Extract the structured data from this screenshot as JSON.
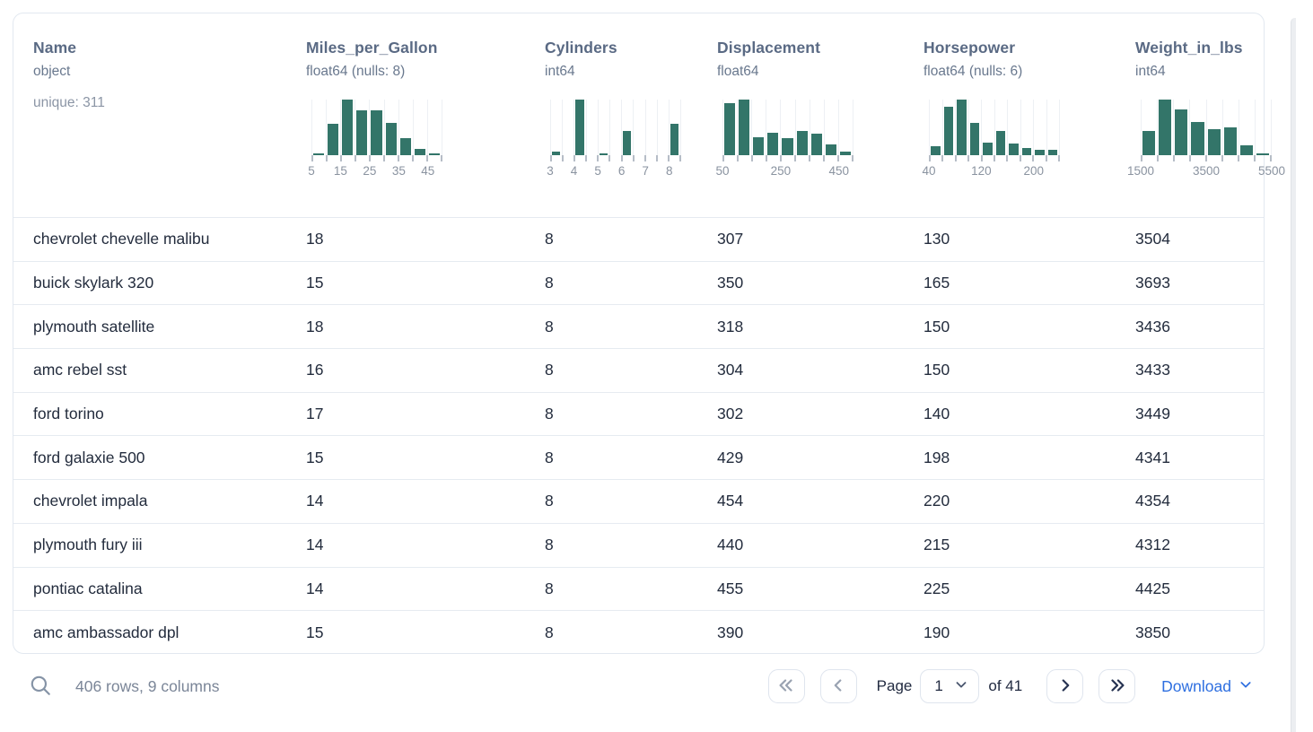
{
  "table": {
    "columns": [
      {
        "name": "Name",
        "dtype": "object",
        "unique": "unique: 311"
      },
      {
        "name": "Miles_per_Gallon",
        "dtype": "float64 (nulls: 8)",
        "histogram": {
          "type": "bar",
          "bars": [
            3,
            56,
            100,
            80,
            80,
            58,
            30,
            12,
            3
          ],
          "tick_labels": [
            {
              "text": "5",
              "boundary": 0
            },
            {
              "text": "15",
              "boundary": 2
            },
            {
              "text": "25",
              "boundary": 4
            },
            {
              "text": "35",
              "boundary": 6
            },
            {
              "text": "45",
              "boundary": 8
            }
          ]
        }
      },
      {
        "name": "Cylinders",
        "dtype": "int64",
        "histogram": {
          "type": "bar",
          "bars": [
            6,
            0,
            100,
            0,
            4,
            0,
            44,
            0,
            0,
            0,
            56
          ],
          "tick_labels": [
            {
              "text": "3",
              "boundary": 0
            },
            {
              "text": "4",
              "boundary": 2
            },
            {
              "text": "5",
              "boundary": 4
            },
            {
              "text": "6",
              "boundary": 6
            },
            {
              "text": "7",
              "boundary": 8
            },
            {
              "text": "8",
              "boundary": 10
            }
          ]
        }
      },
      {
        "name": "Displacement",
        "dtype": "float64",
        "histogram": {
          "type": "bar",
          "bars": [
            93,
            100,
            33,
            41,
            30,
            44,
            38,
            20,
            7
          ],
          "tick_labels": [
            {
              "text": "50",
              "boundary": 0
            },
            {
              "text": "250",
              "boundary": 4
            },
            {
              "text": "450",
              "boundary": 8
            }
          ]
        }
      },
      {
        "name": "Horsepower",
        "dtype": "float64 (nulls: 6)",
        "histogram": {
          "type": "bar",
          "bars": [
            16,
            87,
            100,
            58,
            23,
            44,
            21,
            13,
            10,
            9
          ],
          "tick_labels": [
            {
              "text": "40",
              "boundary": 0
            },
            {
              "text": "120",
              "boundary": 4
            },
            {
              "text": "200",
              "boundary": 8
            }
          ]
        }
      },
      {
        "name": "Weight_in_lbs",
        "dtype": "int64",
        "histogram": {
          "type": "bar",
          "bars": [
            44,
            100,
            82,
            60,
            47,
            50,
            17,
            4
          ],
          "tick_labels": [
            {
              "text": "1500",
              "boundary": 0
            },
            {
              "text": "3500",
              "boundary": 4
            },
            {
              "text": "5500",
              "boundary": 8
            }
          ]
        }
      }
    ],
    "rows": [
      [
        "chevrolet chevelle malibu",
        "18",
        "8",
        "307",
        "130",
        "3504"
      ],
      [
        "buick skylark 320",
        "15",
        "8",
        "350",
        "165",
        "3693"
      ],
      [
        "plymouth satellite",
        "18",
        "8",
        "318",
        "150",
        "3436"
      ],
      [
        "amc rebel sst",
        "16",
        "8",
        "304",
        "150",
        "3433"
      ],
      [
        "ford torino",
        "17",
        "8",
        "302",
        "140",
        "3449"
      ],
      [
        "ford galaxie 500",
        "15",
        "8",
        "429",
        "198",
        "4341"
      ],
      [
        "chevrolet impala",
        "14",
        "8",
        "454",
        "220",
        "4354"
      ],
      [
        "plymouth fury iii",
        "14",
        "8",
        "440",
        "215",
        "4312"
      ],
      [
        "pontiac catalina",
        "14",
        "8",
        "455",
        "225",
        "4425"
      ],
      [
        "amc ambassador dpl",
        "15",
        "8",
        "390",
        "190",
        "3850"
      ]
    ]
  },
  "footer": {
    "summary": "406 rows, 9 columns",
    "page_label": "Page",
    "page_value": "1",
    "of_label": "of 41",
    "download_label": "Download"
  },
  "icons": {
    "search": "magnifier",
    "first_page": "chevrons-left",
    "prev_page": "chevron-left",
    "page_select": "chevron-down",
    "next_page": "chevron-right",
    "last_page": "chevrons-right",
    "download": "chevron-down"
  },
  "colors": {
    "histogram_bar": "#337569",
    "accent_link": "#2e6fe0",
    "header_text": "#5a6a84",
    "cell_text": "#232c3d"
  }
}
